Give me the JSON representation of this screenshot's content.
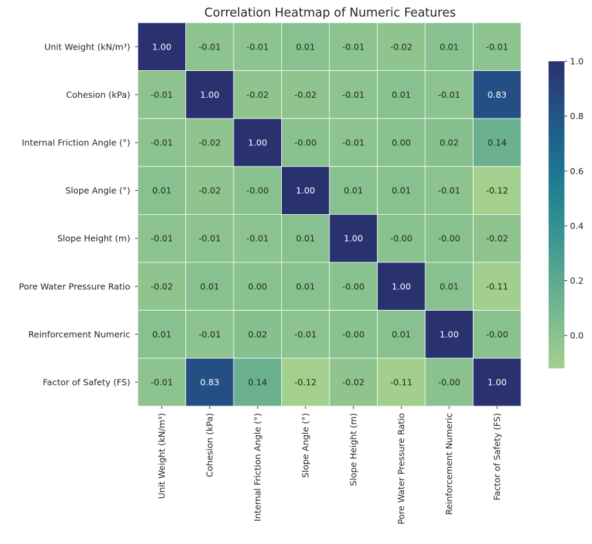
{
  "chart_data": {
    "type": "heatmap",
    "title": "Correlation Heatmap of Numeric Features",
    "rows": [
      "Unit Weight (kN/m³)",
      "Cohesion (kPa)",
      "Internal Friction Angle (°)",
      "Slope Angle (°)",
      "Slope Height (m)",
      "Pore Water Pressure Ratio",
      "Reinforcement Numeric",
      "Factor of Safety (FS)"
    ],
    "columns": [
      "Unit Weight (kN/m³)",
      "Cohesion (kPa)",
      "Internal Friction Angle (°)",
      "Slope Angle (°)",
      "Slope Height (m)",
      "Pore Water Pressure Ratio",
      "Reinforcement Numeric",
      "Factor of Safety (FS)"
    ],
    "values": [
      [
        1.0,
        -0.01,
        -0.01,
        0.01,
        -0.01,
        -0.02,
        0.01,
        -0.01
      ],
      [
        -0.01,
        1.0,
        -0.02,
        -0.02,
        -0.01,
        0.01,
        -0.01,
        0.83
      ],
      [
        -0.01,
        -0.02,
        1.0,
        -0.0,
        -0.01,
        0.0,
        0.02,
        0.14
      ],
      [
        0.01,
        -0.02,
        -0.0,
        1.0,
        0.01,
        0.01,
        -0.01,
        -0.12
      ],
      [
        -0.01,
        -0.01,
        -0.01,
        0.01,
        1.0,
        -0.0,
        -0.0,
        -0.02
      ],
      [
        -0.02,
        0.01,
        0.0,
        0.01,
        -0.0,
        1.0,
        0.01,
        -0.11
      ],
      [
        0.01,
        -0.01,
        0.02,
        -0.01,
        -0.0,
        0.01,
        1.0,
        -0.0
      ],
      [
        -0.01,
        0.83,
        0.14,
        -0.12,
        -0.02,
        -0.11,
        -0.0,
        1.0
      ]
    ],
    "annotation_labels": [
      [
        "1.00",
        "-0.01",
        "-0.01",
        "0.01",
        "-0.01",
        "-0.02",
        "0.01",
        "-0.01"
      ],
      [
        "-0.01",
        "1.00",
        "-0.02",
        "-0.02",
        "-0.01",
        "0.01",
        "-0.01",
        "0.83"
      ],
      [
        "-0.01",
        "-0.02",
        "1.00",
        "-0.00",
        "-0.01",
        "0.00",
        "0.02",
        "0.14"
      ],
      [
        "0.01",
        "-0.02",
        "-0.00",
        "1.00",
        "0.01",
        "0.01",
        "-0.01",
        "-0.12"
      ],
      [
        "-0.01",
        "-0.01",
        "-0.01",
        "0.01",
        "1.00",
        "-0.00",
        "-0.00",
        "-0.02"
      ],
      [
        "-0.02",
        "0.01",
        "0.00",
        "0.01",
        "-0.00",
        "1.00",
        "0.01",
        "-0.11"
      ],
      [
        "0.01",
        "-0.01",
        "0.02",
        "-0.01",
        "-0.00",
        "0.01",
        "1.00",
        "-0.00"
      ],
      [
        "-0.01",
        "0.83",
        "0.14",
        "-0.12",
        "-0.02",
        "-0.11",
        "-0.00",
        "1.00"
      ]
    ],
    "colorbar": {
      "min": -0.12,
      "max": 1.0,
      "ticks": [
        0.0,
        0.2,
        0.4,
        0.6,
        0.8,
        1.0
      ],
      "tick_labels": [
        "0.0",
        "0.2",
        "0.4",
        "0.6",
        "0.8",
        "1.0"
      ],
      "colormap": "crest"
    },
    "colors": {
      "low": "#a0cf8d",
      "high": "#2a316f",
      "text_dark": "#262626",
      "text_light": "#ffffff",
      "cell_border": "#ffffff"
    },
    "grid": false
  }
}
